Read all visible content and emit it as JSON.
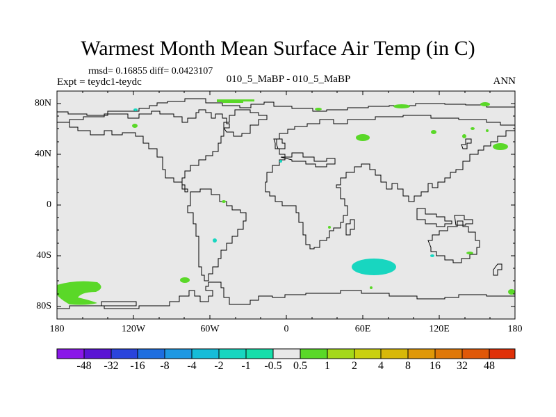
{
  "title": "Warmest Month Mean Surface Air Temp (in C)",
  "stats": "rmsd= 0.16855 diff= 0.0423107",
  "expt": "Expt = teydc1-teydc",
  "cases": "010_5_MaBP - 010_5_MaBP",
  "season": "ANN",
  "lat_labels": [
    "80N",
    "40N",
    "0",
    "40S",
    "80S"
  ],
  "lon_labels": [
    "180",
    "120W",
    "60W",
    "0",
    "60E",
    "120E",
    "180"
  ],
  "colorbar": {
    "labels": [
      "-48",
      "-32",
      "-16",
      "-8",
      "-4",
      "-2",
      "-1",
      "-0.5",
      "0.5",
      "1",
      "2",
      "4",
      "8",
      "16",
      "32",
      "48"
    ],
    "colors": [
      "#8a18e8",
      "#5a14d4",
      "#2a44dc",
      "#1e6ee0",
      "#1e98e2",
      "#16bcd8",
      "#18d6c0",
      "#16deaa",
      "#e8e8e8",
      "#5ad828",
      "#a4d81a",
      "#cad010",
      "#d8b808",
      "#e09808",
      "#e07808",
      "#e05808",
      "#e03008"
    ]
  },
  "colors": {
    "land_fill": "#e8e8e8",
    "plus_one": "#5ad828",
    "minus_one": "#18d6c0",
    "coast": "#000000"
  }
}
